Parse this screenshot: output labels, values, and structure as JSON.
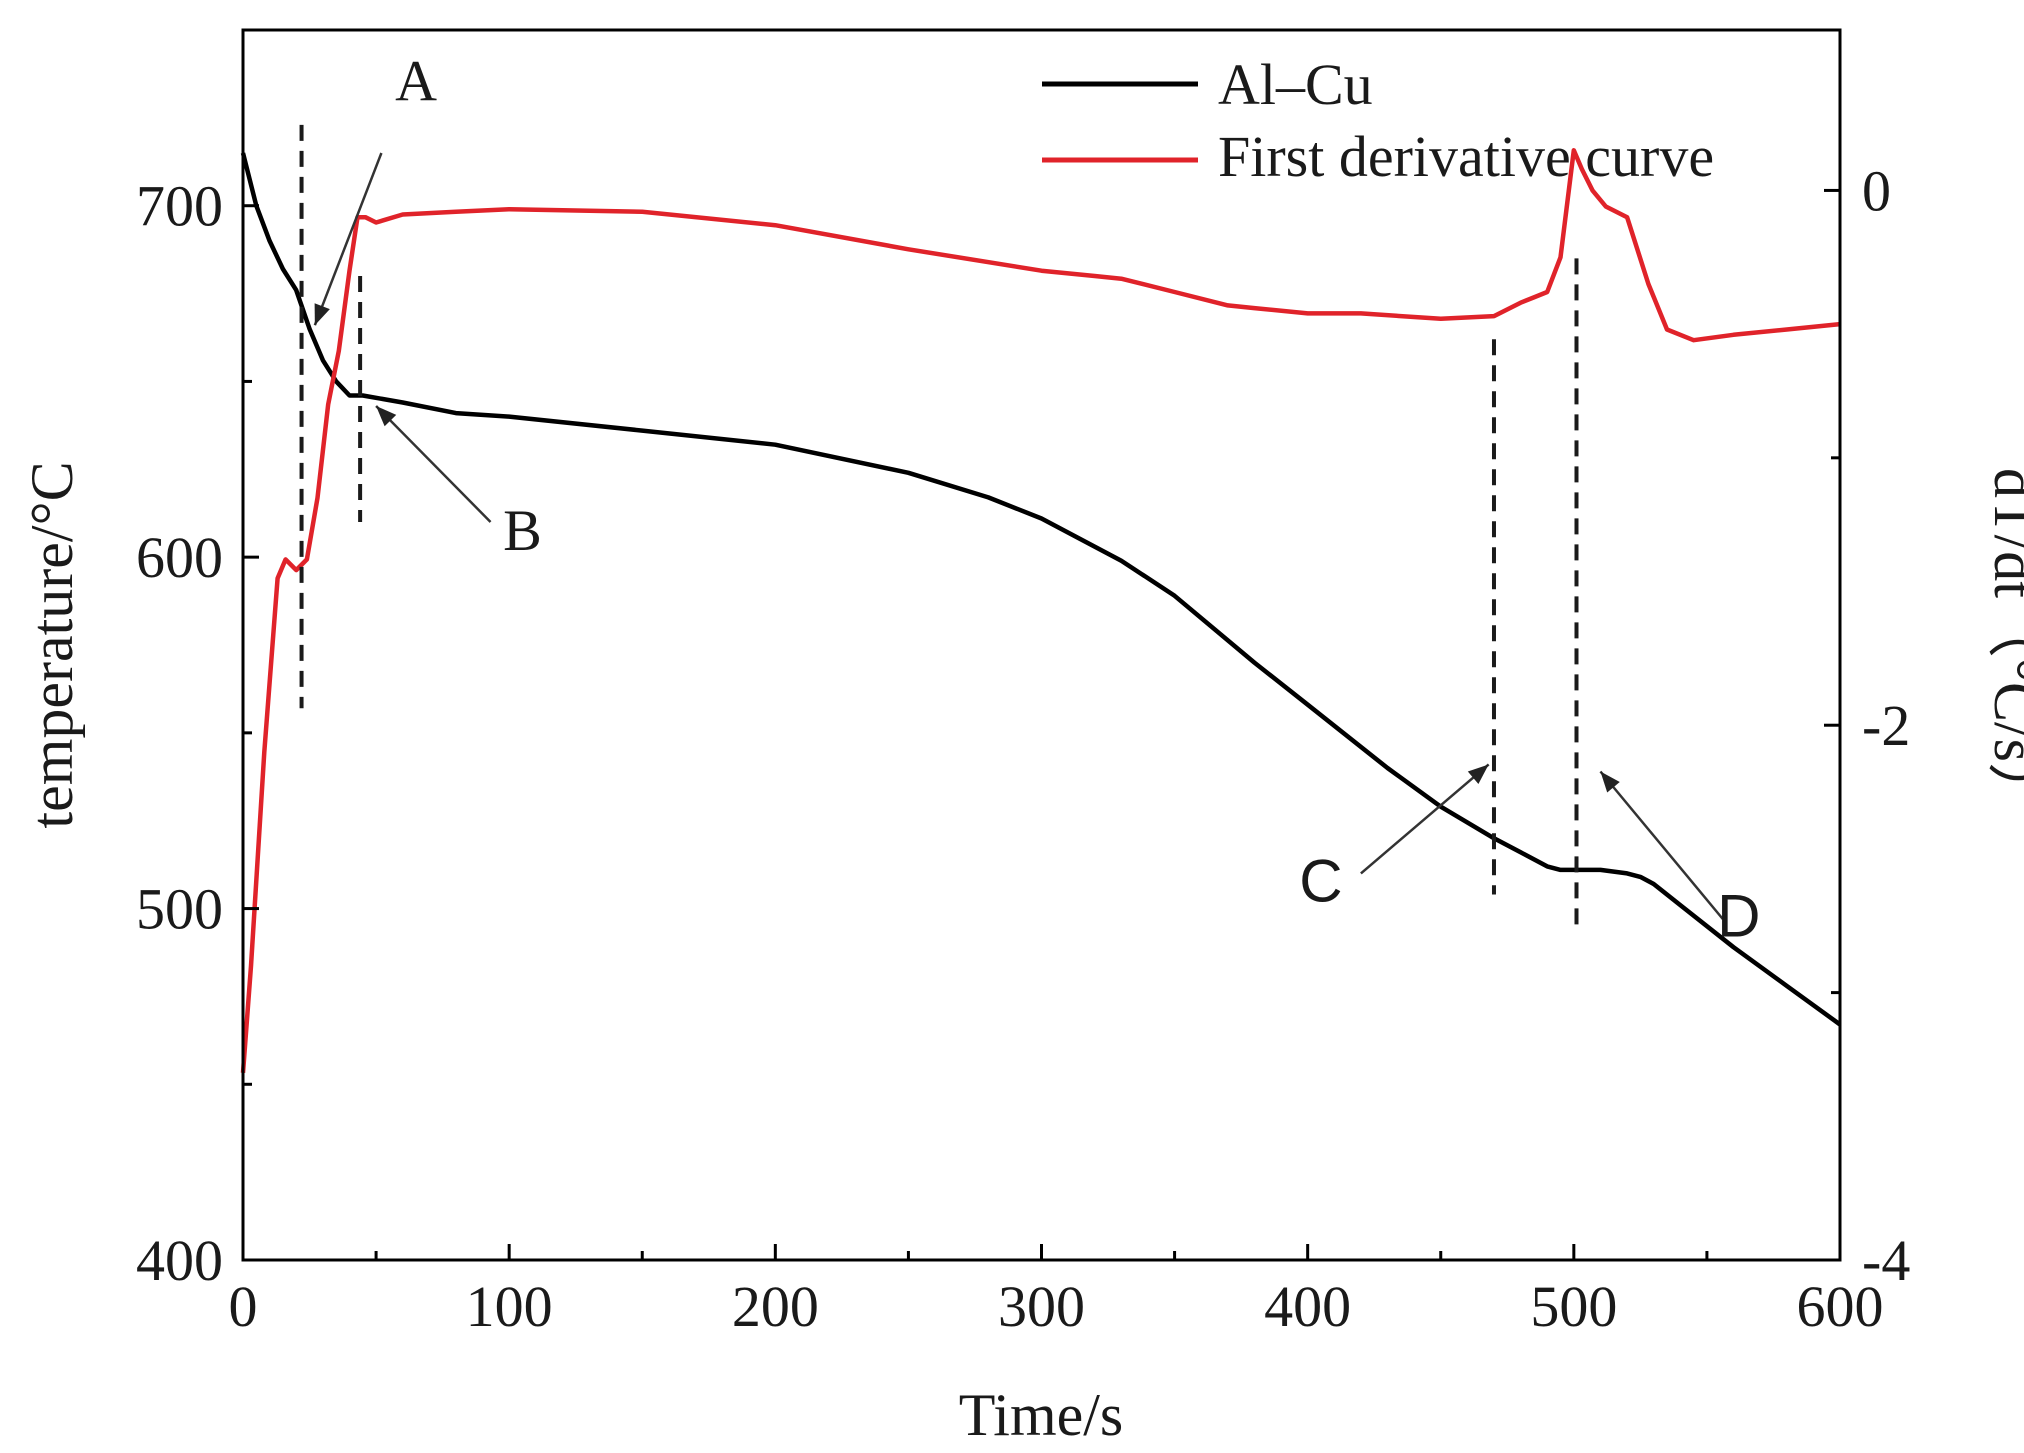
{
  "chart_data": {
    "type": "line",
    "xlabel": "Time/s",
    "ylabel_left": "temperature/°C",
    "ylabel_right": "dT/dt（°C/s）",
    "xlim": [
      0,
      600
    ],
    "ylim_left": [
      400,
      750
    ],
    "ylim_right": [
      -4,
      0.6
    ],
    "x_ticks": [
      "0",
      "100",
      "200",
      "300",
      "400",
      "500",
      "600"
    ],
    "y_left_ticks": [
      "400",
      "500",
      "600",
      "700"
    ],
    "y_right_ticks": [
      "-4",
      "-2",
      "0"
    ],
    "colors": {
      "temperature": "#000000",
      "derivative": "#e0232a"
    },
    "series": [
      {
        "name": "Al–Cu",
        "axis": "left",
        "x": [
          0,
          5,
          10,
          15,
          20,
          25,
          30,
          35,
          40,
          45,
          60,
          80,
          100,
          150,
          200,
          250,
          280,
          300,
          330,
          350,
          380,
          400,
          430,
          450,
          470,
          480,
          490,
          495,
          500,
          510,
          520,
          525,
          530,
          540,
          560,
          580,
          600
        ],
        "y": [
          715,
          700,
          690,
          682,
          676,
          665,
          656,
          650,
          646,
          646,
          644,
          641,
          640,
          636,
          632,
          624,
          617,
          611,
          599,
          589,
          570,
          558,
          540,
          529,
          520,
          516,
          512,
          511,
          511,
          511,
          510,
          509,
          507,
          501,
          489,
          478,
          467
        ]
      },
      {
        "name": "First derivative curve",
        "axis": "right",
        "x": [
          0,
          3,
          8,
          13,
          16,
          20,
          24,
          28,
          32,
          36,
          40,
          43,
          46,
          50,
          60,
          80,
          100,
          150,
          200,
          250,
          300,
          320,
          330,
          350,
          370,
          380,
          400,
          420,
          450,
          470,
          480,
          485,
          490,
          495,
          500,
          503,
          507,
          512,
          520,
          528,
          535,
          545,
          560,
          580,
          600
        ],
        "y": [
          -3.3,
          -2.9,
          -2.1,
          -1.45,
          -1.38,
          -1.42,
          -1.38,
          -1.15,
          -0.8,
          -0.6,
          -0.3,
          -0.1,
          -0.1,
          -0.12,
          -0.09,
          -0.08,
          -0.07,
          -0.08,
          -0.13,
          -0.22,
          -0.3,
          -0.32,
          -0.33,
          -0.38,
          -0.43,
          -0.44,
          -0.46,
          -0.46,
          -0.48,
          -0.47,
          -0.42,
          -0.4,
          -0.38,
          -0.25,
          0.15,
          0.08,
          0.0,
          -0.06,
          -0.1,
          -0.35,
          -0.52,
          -0.56,
          -0.54,
          -0.52,
          -0.5
        ]
      }
    ],
    "vlines": [
      {
        "x": 22,
        "y_range": [
          557,
          723
        ]
      },
      {
        "x": 44,
        "y_range": [
          610,
          680
        ]
      },
      {
        "x": 470,
        "y_range": [
          504,
          662
        ]
      },
      {
        "x": 501,
        "y_range": [
          495,
          685
        ]
      }
    ],
    "annotations": [
      {
        "label": "A",
        "text_at": [
          65,
          730
        ],
        "arrow_from": [
          52,
          715
        ],
        "arrow_to": [
          27,
          666
        ]
      },
      {
        "label": "B",
        "text_at": [
          105,
          602
        ],
        "arrow_from": [
          93,
          610
        ],
        "arrow_to": [
          50,
          643
        ]
      },
      {
        "label": "C",
        "text_at": [
          405,
          502
        ],
        "arrow_from": [
          420,
          510
        ],
        "arrow_to": [
          468,
          541
        ]
      },
      {
        "label": "D",
        "text_at": [
          562,
          492
        ],
        "arrow_from": [
          556,
          497
        ],
        "arrow_to": [
          510,
          539
        ]
      }
    ],
    "legend": {
      "position": "top-right",
      "entries": [
        "Al–Cu",
        "First derivative curve"
      ]
    }
  }
}
